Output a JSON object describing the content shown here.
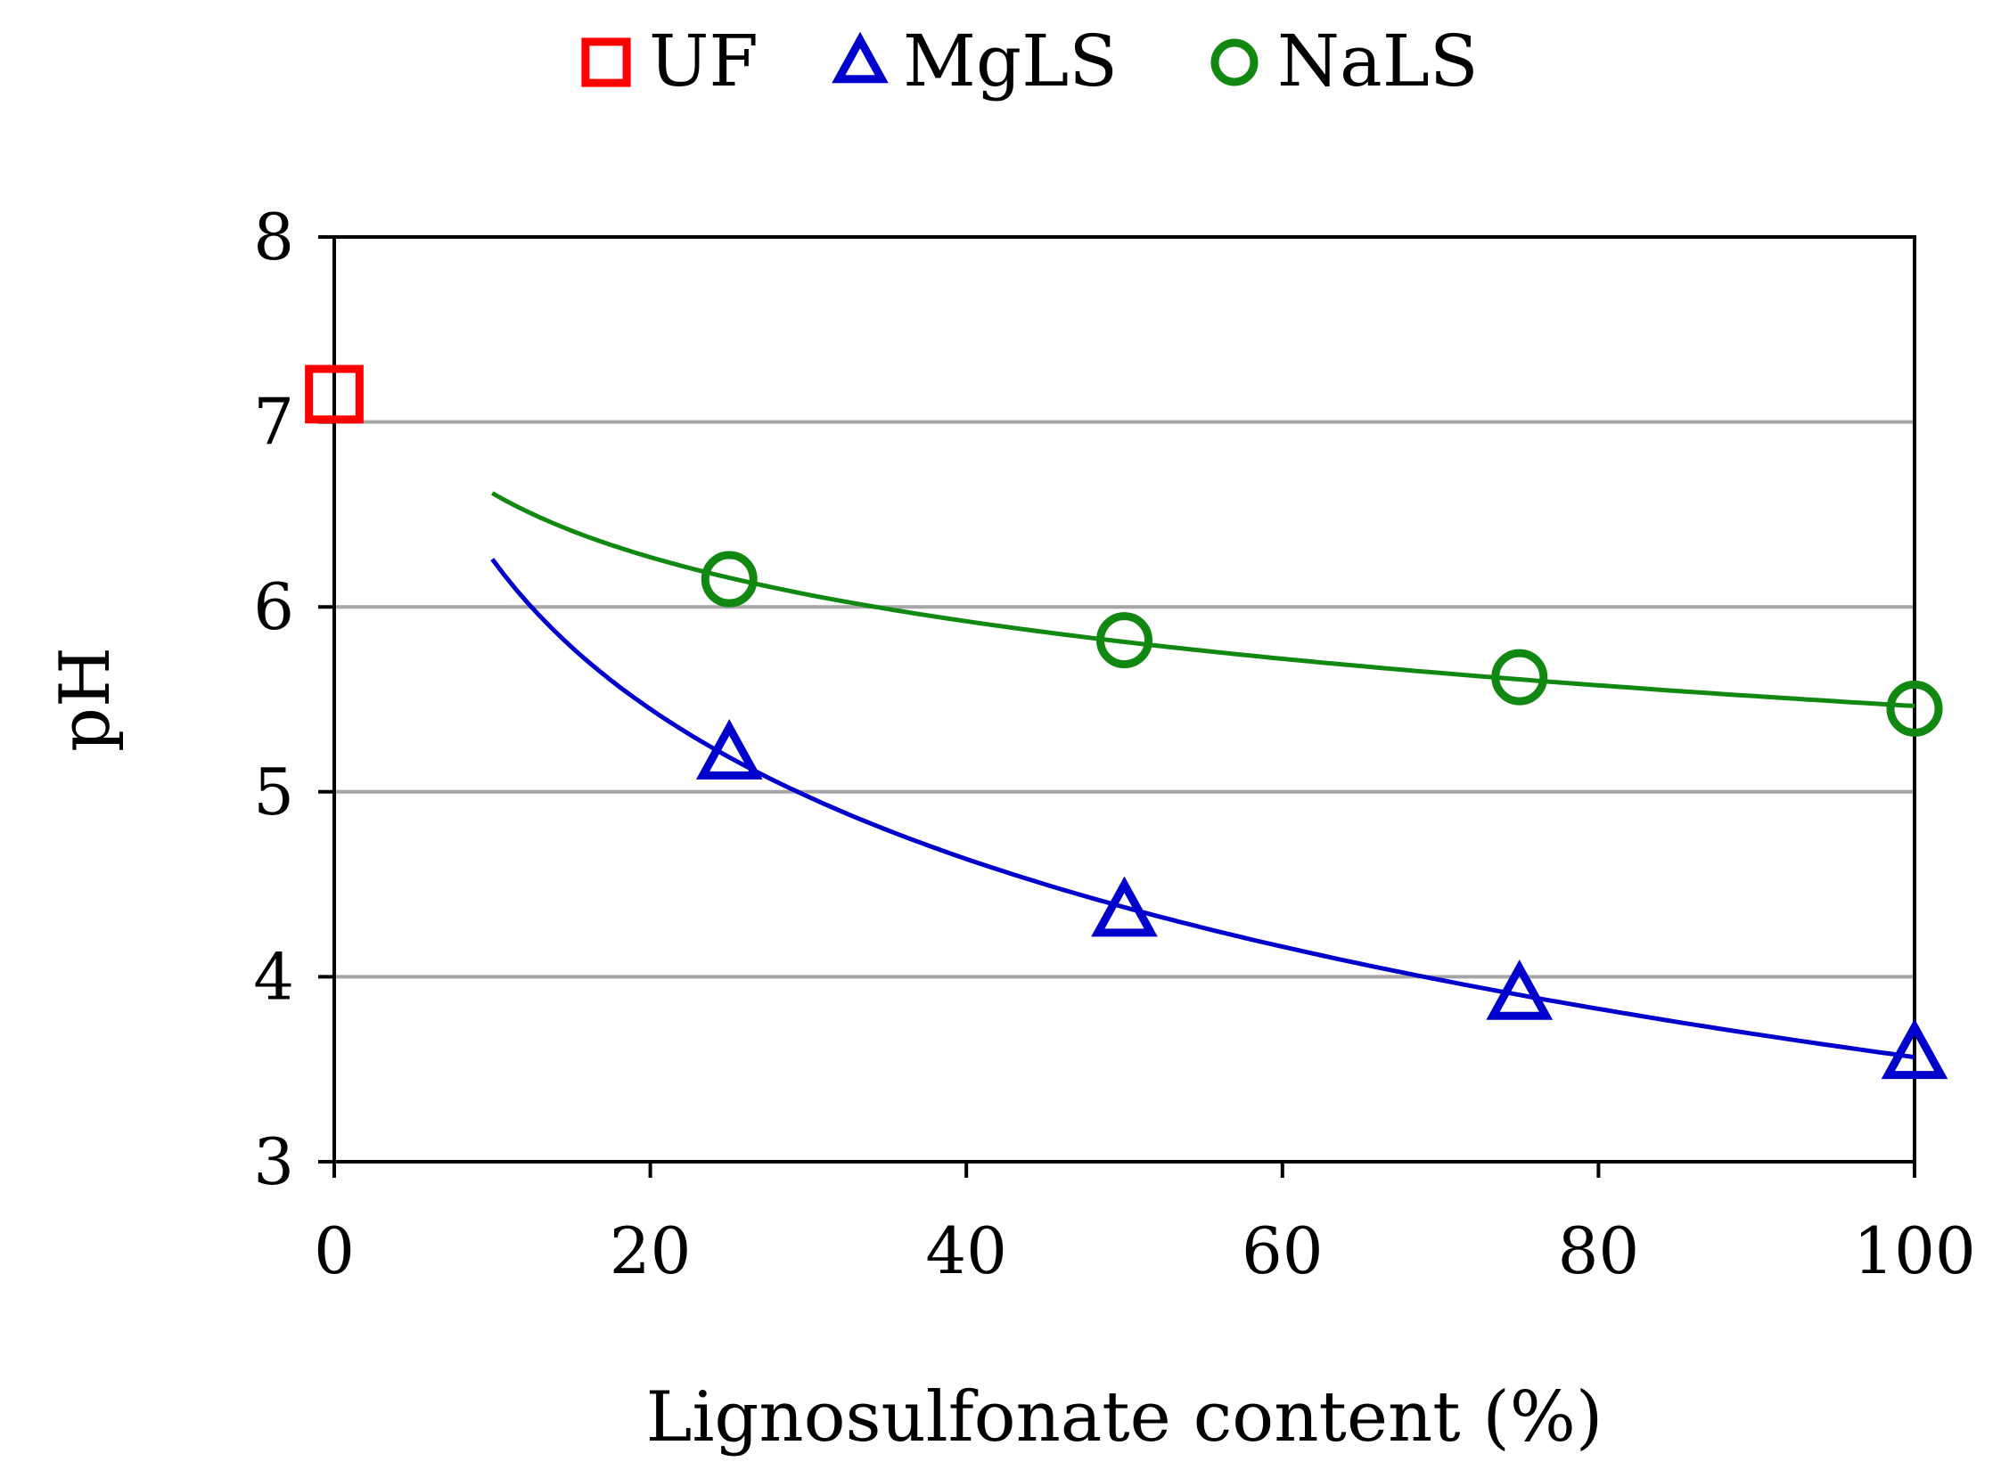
{
  "chart_data": {
    "type": "scatter",
    "xlabel": "Lignosulfonate content (%)",
    "ylabel": "pH",
    "xlim": [
      0,
      100
    ],
    "ylim": [
      3,
      8
    ],
    "x_ticks": [
      0,
      20,
      40,
      60,
      80,
      100
    ],
    "y_ticks": [
      3,
      4,
      5,
      6,
      7,
      8
    ],
    "grid": "horizontal",
    "legend_position": "top-center",
    "series": [
      {
        "name": "UF",
        "marker": "square",
        "color": "#ff0000",
        "x": [
          0
        ],
        "y": [
          7.15
        ]
      },
      {
        "name": "MgLS",
        "marker": "triangle",
        "color": "#0000cc",
        "x": [
          25,
          50,
          75,
          100
        ],
        "y": [
          5.2,
          4.35,
          3.9,
          3.58
        ],
        "trendline": {
          "type": "logarithmic",
          "x_start": 10,
          "x_end": 100
        }
      },
      {
        "name": "NaLS",
        "marker": "circle",
        "color": "#118811",
        "x": [
          25,
          50,
          75,
          100
        ],
        "y": [
          6.15,
          5.82,
          5.62,
          5.45
        ],
        "trendline": {
          "type": "logarithmic",
          "x_start": 10,
          "x_end": 100
        }
      }
    ]
  }
}
